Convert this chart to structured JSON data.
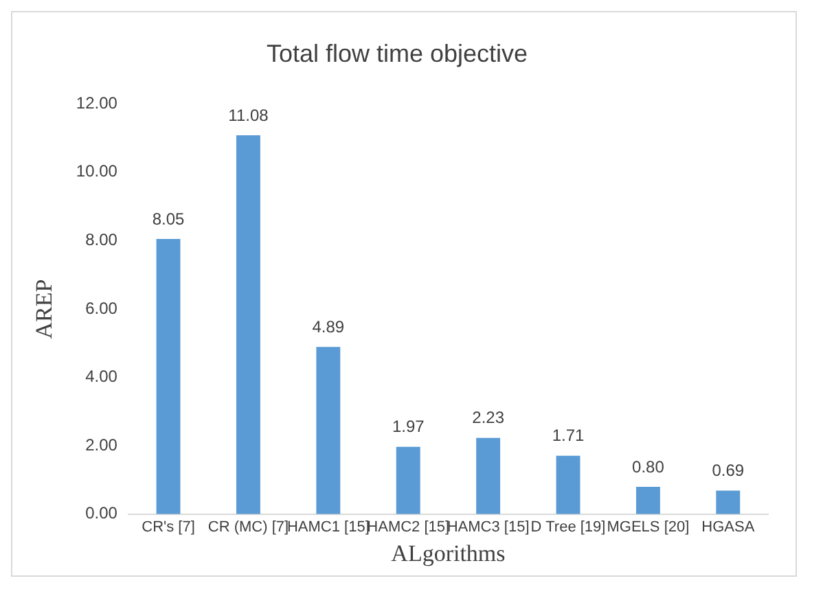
{
  "chart_data": {
    "type": "bar",
    "title": "Total flow time objective",
    "xlabel": "ALgorithms",
    "ylabel": "AREP",
    "categories": [
      "CR's [7]",
      "CR (MC) [7]",
      "HAMC1 [15]",
      "HAMC2 [15]",
      "HAMC3 [15]",
      "D Tree [19]",
      "MGELS [20]",
      "HGASA"
    ],
    "values": [
      8.05,
      11.08,
      4.89,
      1.97,
      2.23,
      1.71,
      0.8,
      0.69
    ],
    "value_labels": [
      "8.05",
      "11.08",
      "4.89",
      "1.97",
      "2.23",
      "1.71",
      "0.80",
      "0.69"
    ],
    "color": "#5b9bd5",
    "ylim": [
      0,
      12
    ],
    "yticks": [
      {
        "value": 0,
        "label": "0.00"
      },
      {
        "value": 2,
        "label": "2.00"
      },
      {
        "value": 4,
        "label": "4.00"
      },
      {
        "value": 6,
        "label": "6.00"
      },
      {
        "value": 8,
        "label": "8.00"
      },
      {
        "value": 10,
        "label": "10.00"
      },
      {
        "value": 12,
        "label": "12.00"
      }
    ],
    "grid": false,
    "legend": false
  }
}
